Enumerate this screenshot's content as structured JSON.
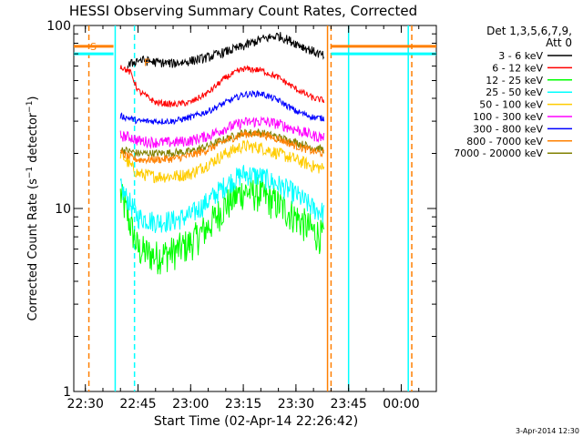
{
  "chart_data": {
    "type": "line",
    "title": "HESSI Observing Summary Count Rates, Corrected",
    "xlabel": "Start Time (02-Apr-14 22:26:42)",
    "ylabel": "Corrected Count Rate (s⁻¹ detector⁻¹)",
    "ylabel_parts": [
      "Corrected Count Rate (s",
      "−1",
      " detector",
      "−1",
      ")"
    ],
    "yscale": "log",
    "ylim": [
      1,
      100
    ],
    "xlim": [
      "22:26:42",
      "00:10:00"
    ],
    "x_ticks": [
      "22:30",
      "22:45",
      "23:00",
      "23:15",
      "23:30",
      "23:45",
      "00:00"
    ],
    "y_ticks": [
      "1",
      "10",
      "100"
    ],
    "legend_title": [
      "Det 1,3,5,6,7,9,",
      "Att 0"
    ],
    "legend_position": "right",
    "date_stamp": "3-Apr-2014 12:30",
    "flags": [
      {
        "label": "S",
        "color": "#ff7f00"
      },
      {
        "label": "F",
        "color": "#ff7f00"
      }
    ],
    "series": [
      {
        "name": "3 - 6 keV",
        "color": "#000000",
        "points": [
          [
            "22:42:00",
            60
          ],
          [
            "22:45:00",
            65
          ],
          [
            "22:50:00",
            63
          ],
          [
            "22:55:00",
            62
          ],
          [
            "23:00:00",
            64
          ],
          [
            "23:05:00",
            67
          ],
          [
            "23:10:00",
            72
          ],
          [
            "23:15:00",
            77
          ],
          [
            "23:20:00",
            84
          ],
          [
            "23:25:00",
            88
          ],
          [
            "23:30:00",
            80
          ],
          [
            "23:35:00",
            72
          ],
          [
            "23:38:00",
            68
          ]
        ]
      },
      {
        "name": "6 - 12 keV",
        "color": "#ff0000",
        "points": [
          [
            "22:40:00",
            60
          ],
          [
            "22:43:00",
            55
          ],
          [
            "22:45:00",
            44
          ],
          [
            "22:50:00",
            38
          ],
          [
            "22:55:00",
            37
          ],
          [
            "23:00:00",
            38
          ],
          [
            "23:05:00",
            43
          ],
          [
            "23:10:00",
            52
          ],
          [
            "23:15:00",
            58
          ],
          [
            "23:20:00",
            57
          ],
          [
            "23:25:00",
            52
          ],
          [
            "23:30:00",
            45
          ],
          [
            "23:35:00",
            40
          ],
          [
            "23:38:00",
            39
          ]
        ]
      },
      {
        "name": "12 - 25 keV",
        "color": "#00ff00",
        "points": [
          [
            "22:40:00",
            12
          ],
          [
            "22:43:00",
            8
          ],
          [
            "22:45:00",
            6
          ],
          [
            "22:50:00",
            5.5
          ],
          [
            "22:55:00",
            5.8
          ],
          [
            "23:00:00",
            6.5
          ],
          [
            "23:05:00",
            8
          ],
          [
            "23:10:00",
            10.5
          ],
          [
            "23:15:00",
            12.5
          ],
          [
            "23:20:00",
            12
          ],
          [
            "23:25:00",
            10.5
          ],
          [
            "23:30:00",
            9
          ],
          [
            "23:35:00",
            7.5
          ],
          [
            "23:38:00",
            7
          ]
        ]
      },
      {
        "name": "25 - 50 keV",
        "color": "#00ffff",
        "points": [
          [
            "22:40:00",
            13
          ],
          [
            "22:43:00",
            10.5
          ],
          [
            "22:45:00",
            9
          ],
          [
            "22:50:00",
            8.5
          ],
          [
            "22:55:00",
            8.6
          ],
          [
            "23:00:00",
            9.2
          ],
          [
            "23:05:00",
            11
          ],
          [
            "23:10:00",
            13.5
          ],
          [
            "23:15:00",
            15.5
          ],
          [
            "23:20:00",
            15
          ],
          [
            "23:25:00",
            13.5
          ],
          [
            "23:30:00",
            12
          ],
          [
            "23:35:00",
            10
          ],
          [
            "23:38:00",
            9.5
          ]
        ]
      },
      {
        "name": "50 - 100 keV",
        "color": "#ffcc00",
        "points": [
          [
            "22:40:00",
            20
          ],
          [
            "22:43:00",
            17
          ],
          [
            "22:45:00",
            15.5
          ],
          [
            "22:50:00",
            15
          ],
          [
            "22:55:00",
            15
          ],
          [
            "23:00:00",
            15.5
          ],
          [
            "23:05:00",
            17.5
          ],
          [
            "23:10:00",
            20
          ],
          [
            "23:15:00",
            22
          ],
          [
            "23:20:00",
            21.5
          ],
          [
            "23:25:00",
            20
          ],
          [
            "23:30:00",
            18.5
          ],
          [
            "23:35:00",
            17
          ],
          [
            "23:38:00",
            16.5
          ]
        ]
      },
      {
        "name": "100 - 300 keV",
        "color": "#ff00ff",
        "points": [
          [
            "22:40:00",
            25
          ],
          [
            "22:43:00",
            24.5
          ],
          [
            "22:45:00",
            23.5
          ],
          [
            "22:50:00",
            23
          ],
          [
            "22:55:00",
            23
          ],
          [
            "23:00:00",
            23.5
          ],
          [
            "23:05:00",
            25
          ],
          [
            "23:10:00",
            27.5
          ],
          [
            "23:15:00",
            29.5
          ],
          [
            "23:20:00",
            30
          ],
          [
            "23:25:00",
            29
          ],
          [
            "23:30:00",
            27
          ],
          [
            "23:35:00",
            25
          ],
          [
            "23:38:00",
            24.5
          ]
        ]
      },
      {
        "name": "300 - 800 keV",
        "color": "#0000ff",
        "points": [
          [
            "22:40:00",
            32
          ],
          [
            "22:43:00",
            31
          ],
          [
            "22:45:00",
            30
          ],
          [
            "22:50:00",
            30
          ],
          [
            "22:55:00",
            30
          ],
          [
            "23:00:00",
            31.5
          ],
          [
            "23:05:00",
            34
          ],
          [
            "23:10:00",
            38
          ],
          [
            "23:15:00",
            42
          ],
          [
            "23:20:00",
            42.5
          ],
          [
            "23:25:00",
            39
          ],
          [
            "23:30:00",
            34
          ],
          [
            "23:35:00",
            31.5
          ],
          [
            "23:38:00",
            31
          ]
        ]
      },
      {
        "name": "800 - 7000 keV",
        "color": "#ff8000",
        "points": [
          [
            "22:40:00",
            20
          ],
          [
            "22:43:00",
            19
          ],
          [
            "22:45:00",
            18.5
          ],
          [
            "22:50:00",
            18.5
          ],
          [
            "22:55:00",
            18.7
          ],
          [
            "23:00:00",
            19.5
          ],
          [
            "23:05:00",
            21
          ],
          [
            "23:10:00",
            23.5
          ],
          [
            "23:15:00",
            25.5
          ],
          [
            "23:20:00",
            25.5
          ],
          [
            "23:25:00",
            24
          ],
          [
            "23:30:00",
            22
          ],
          [
            "23:35:00",
            20.5
          ],
          [
            "23:38:00",
            20
          ]
        ]
      },
      {
        "name": "7000 - 20000 keV",
        "color": "#808000",
        "points": [
          [
            "22:40:00",
            21
          ],
          [
            "22:43:00",
            20.5
          ],
          [
            "22:45:00",
            20
          ],
          [
            "22:50:00",
            20
          ],
          [
            "22:55:00",
            20.2
          ],
          [
            "23:00:00",
            20.5
          ],
          [
            "23:05:00",
            22
          ],
          [
            "23:10:00",
            24
          ],
          [
            "23:15:00",
            26
          ],
          [
            "23:20:00",
            26
          ],
          [
            "23:25:00",
            24.5
          ],
          [
            "23:30:00",
            23
          ],
          [
            "23:35:00",
            21.5
          ],
          [
            "23:38:00",
            21
          ]
        ]
      }
    ],
    "attenuator_level": [
      {
        "start": "22:26:42",
        "end": "22:38:00",
        "value": 70,
        "color": "#00ffff"
      },
      {
        "start": "23:40:00",
        "end": "00:10:00",
        "value": 70,
        "color": "#00ffff"
      },
      {
        "start": "22:26:42",
        "end": "22:38:00",
        "value": 77,
        "color": "#ff7f00"
      },
      {
        "start": "23:40:00",
        "end": "00:10:00",
        "value": 77,
        "color": "#ff7f00"
      }
    ],
    "vertical_markers": [
      {
        "time": "22:31:00",
        "color": "#ff7f00",
        "style": "dashed"
      },
      {
        "time": "22:38:30",
        "color": "#00ffff",
        "style": "solid"
      },
      {
        "time": "22:44:00",
        "color": "#00ffff",
        "style": "dashed"
      },
      {
        "time": "23:39:00",
        "color": "#ff7f00",
        "style": "solid"
      },
      {
        "time": "23:40:00",
        "color": "#ff7f00",
        "style": "dashed"
      },
      {
        "time": "23:45:00",
        "color": "#00ffff",
        "style": "solid"
      },
      {
        "time": "00:02:00",
        "color": "#00ffff",
        "style": "solid"
      },
      {
        "time": "00:03:00",
        "color": "#ff7f00",
        "style": "dashed"
      }
    ]
  }
}
